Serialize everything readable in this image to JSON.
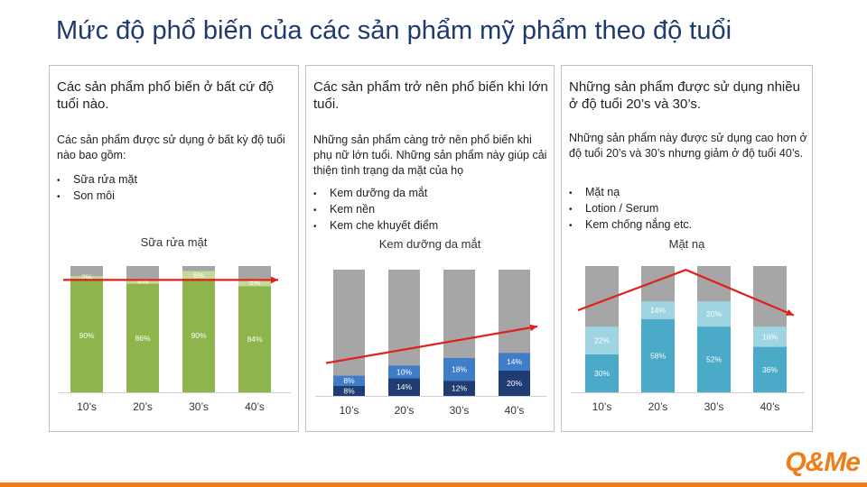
{
  "title": "Mức độ phổ biến của các sản phẩm mỹ phẩm theo độ tuổi",
  "logo": "Q&Me",
  "panels": [
    {
      "heading": "Các sản phẩm phổ biến ở bất cứ độ tuổi nào.",
      "description": "Các sản phẩm được sử dụng ở bất kỳ độ tuổi nào bao gồm:",
      "bullets": [
        "Sữa rửa mặt",
        "Son môi"
      ]
    },
    {
      "heading": "Các sản phẩm trở nên phổ biến khi lớn tuổi.",
      "description": "Những sản phẩm càng trở nên phổ biến khi phụ nữ lớn tuổi. Những sản phẩm này giúp cải thiện tình trạng da mặt của họ",
      "bullets": [
        "Kem dưỡng da mắt",
        "Kem nền",
        "Kem che khuyết điểm"
      ]
    },
    {
      "heading": "Những sản phẩm được sử dụng nhiều ở độ tuổi 20’s và 30’s.",
      "description": "Những sản phẩm này được sử dụng cao hơn ở độ tuổi 20’s và 30’s nhưng giảm ở độ tuổi 40’s.",
      "bullets": [
        "Mặt nạ",
        "Lotion / Serum",
        "Kem chống nắng etc."
      ]
    }
  ],
  "chart_data": [
    {
      "type": "bar",
      "stacked": true,
      "title": "Sữa rửa mặt",
      "categories": [
        "10’s",
        "20’s",
        "30’s",
        "40’s"
      ],
      "ylim": [
        0,
        100
      ],
      "series": [
        {
          "values": [
            90,
            86,
            90,
            84
          ],
          "labels": [
            "90%",
            "86%",
            "90%",
            "84%"
          ],
          "color": "#8db54b"
        },
        {
          "values": [
            2,
            4,
            6,
            6
          ],
          "labels": [
            "2%",
            "4%",
            "6%",
            "6%"
          ],
          "color": "#c3db97"
        }
      ],
      "trend": "flat",
      "trend_color": "#e0201b"
    },
    {
      "type": "bar",
      "stacked": true,
      "title": "Kem dưỡng da mắt",
      "categories": [
        "10’s",
        "20’s",
        "30’s",
        "40’s"
      ],
      "ylim": [
        0,
        100
      ],
      "series": [
        {
          "values": [
            8,
            14,
            12,
            20
          ],
          "labels": [
            "8%",
            "14%",
            "12%",
            "20%"
          ],
          "color": "#1f3c73"
        },
        {
          "values": [
            8,
            10,
            18,
            14
          ],
          "labels": [
            "8%",
            "10%",
            "18%",
            "14%"
          ],
          "color": "#3f7dc9"
        }
      ],
      "trend": "rising",
      "trend_color": "#e0201b"
    },
    {
      "type": "bar",
      "stacked": true,
      "title": "Mặt nạ",
      "categories": [
        "10’s",
        "20’s",
        "30’s",
        "40’s"
      ],
      "ylim": [
        0,
        100
      ],
      "series": [
        {
          "values": [
            30,
            58,
            52,
            36
          ],
          "labels": [
            "30%",
            "58%",
            "52%",
            "36%"
          ],
          "color": "#4aaac7"
        },
        {
          "values": [
            22,
            14,
            20,
            16
          ],
          "labels": [
            "22%",
            "14%",
            "20%",
            "16%"
          ],
          "color": "#9fd4e3"
        }
      ],
      "trend": "peak",
      "trend_color": "#e0201b"
    }
  ],
  "colors": {
    "title": "#1f3a6e",
    "bar_remainder": "#a6a6a6",
    "accent": "#f07d19"
  }
}
